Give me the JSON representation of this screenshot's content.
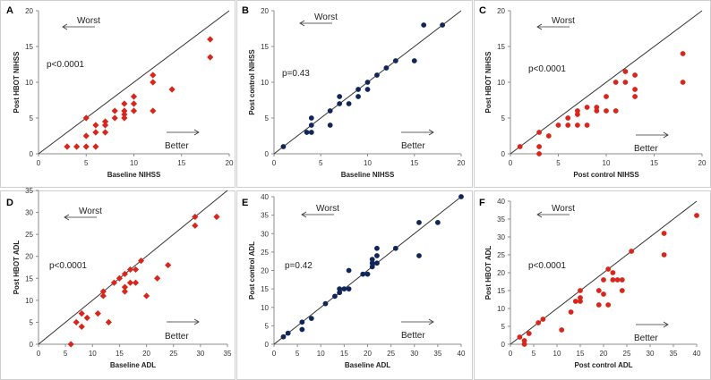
{
  "colors": {
    "red": "#d9261c",
    "navy": "#10265a"
  },
  "chart_data": [
    {
      "type": "scatter",
      "letter": "A",
      "title": "",
      "xlabel": "Baseline NIHSS",
      "ylabel": "Post HBOT NIHSS",
      "xlim": [
        0,
        20
      ],
      "ylim": [
        0,
        20
      ],
      "xticks": [
        0,
        5,
        10,
        15,
        20
      ],
      "yticks": [
        0,
        5,
        10,
        15,
        20
      ],
      "marker": "diamond",
      "color": "#d9261c",
      "pvalue": "p<0.0001",
      "worst_label": "Worst",
      "better_label": "Better",
      "points": [
        [
          3,
          1
        ],
        [
          4,
          1
        ],
        [
          5,
          1
        ],
        [
          6,
          1
        ],
        [
          5,
          2.5
        ],
        [
          5,
          5
        ],
        [
          6,
          3
        ],
        [
          6,
          4
        ],
        [
          7,
          3
        ],
        [
          7,
          4
        ],
        [
          7,
          4.5
        ],
        [
          8,
          5
        ],
        [
          8,
          6
        ],
        [
          9,
          5
        ],
        [
          9,
          5.5
        ],
        [
          9,
          6
        ],
        [
          9,
          7
        ],
        [
          10,
          6
        ],
        [
          10,
          7
        ],
        [
          10,
          8
        ],
        [
          12,
          6
        ],
        [
          12,
          10
        ],
        [
          12,
          11
        ],
        [
          14,
          9
        ],
        [
          18,
          13.5
        ],
        [
          18,
          16
        ]
      ]
    },
    {
      "type": "scatter",
      "letter": "B",
      "title": "",
      "xlabel": "Baseline NIHSS",
      "ylabel": "Post control NIHSS",
      "xlim": [
        0,
        20
      ],
      "ylim": [
        0,
        20
      ],
      "xticks": [
        0,
        5,
        10,
        15,
        20
      ],
      "yticks": [
        0,
        5,
        10,
        15,
        20
      ],
      "marker": "circle",
      "color": "#10265a",
      "pvalue": "p=0.43",
      "worst_label": "Worst",
      "better_label": "Better",
      "points": [
        [
          1,
          1
        ],
        [
          3.5,
          3
        ],
        [
          4,
          3
        ],
        [
          4,
          4
        ],
        [
          4,
          5
        ],
        [
          6,
          4
        ],
        [
          6,
          6
        ],
        [
          7,
          7
        ],
        [
          7,
          8
        ],
        [
          8,
          7
        ],
        [
          9,
          8
        ],
        [
          9,
          9
        ],
        [
          10,
          9
        ],
        [
          10,
          10
        ],
        [
          11,
          11
        ],
        [
          12,
          12
        ],
        [
          13,
          13
        ],
        [
          15,
          13
        ],
        [
          16,
          18
        ],
        [
          18,
          18
        ]
      ]
    },
    {
      "type": "scatter",
      "letter": "C",
      "title": "",
      "xlabel": "Post control NIHSS",
      "ylabel": "Post HBOT NIHSS",
      "xlim": [
        0,
        20
      ],
      "ylim": [
        0,
        20
      ],
      "xticks": [
        0,
        5,
        10,
        15,
        20
      ],
      "yticks": [
        0,
        5,
        10,
        15,
        20
      ],
      "marker": "circle",
      "color": "#d9261c",
      "pvalue": "p<0.0001",
      "worst_label": "Worst",
      "better_label": "Better",
      "points": [
        [
          1,
          1
        ],
        [
          3,
          0
        ],
        [
          3,
          1
        ],
        [
          3,
          3
        ],
        [
          4,
          2.5
        ],
        [
          5,
          4
        ],
        [
          6,
          4
        ],
        [
          6,
          5
        ],
        [
          7,
          4
        ],
        [
          7,
          5.5
        ],
        [
          7,
          6
        ],
        [
          8,
          4
        ],
        [
          8,
          6.5
        ],
        [
          9,
          6
        ],
        [
          9,
          6.5
        ],
        [
          10,
          6
        ],
        [
          10,
          8
        ],
        [
          11,
          6
        ],
        [
          11,
          10
        ],
        [
          12,
          10
        ],
        [
          12,
          11.5
        ],
        [
          13,
          8
        ],
        [
          13,
          9
        ],
        [
          13,
          11
        ],
        [
          18,
          10
        ],
        [
          18,
          14
        ]
      ]
    },
    {
      "type": "scatter",
      "letter": "D",
      "title": "",
      "xlabel": "Baseline ADL",
      "ylabel": "Post HBOT ADL",
      "xlim": [
        0,
        35
      ],
      "ylim": [
        0,
        35
      ],
      "xticks": [
        0,
        5,
        10,
        15,
        20,
        25,
        30,
        35
      ],
      "yticks": [
        0,
        5,
        10,
        15,
        20,
        25,
        30,
        35
      ],
      "marker": "diamond",
      "color": "#d9261c",
      "pvalue": "p<0.0001",
      "worst_label": "Worst",
      "better_label": "Better",
      "points": [
        [
          6,
          0
        ],
        [
          7,
          5
        ],
        [
          8,
          4
        ],
        [
          8,
          7
        ],
        [
          9,
          6
        ],
        [
          11,
          7
        ],
        [
          12,
          11
        ],
        [
          12,
          12
        ],
        [
          13,
          5
        ],
        [
          14,
          14
        ],
        [
          15,
          15
        ],
        [
          16,
          12
        ],
        [
          16,
          13
        ],
        [
          16,
          16
        ],
        [
          17,
          14
        ],
        [
          17,
          17
        ],
        [
          18,
          14
        ],
        [
          18,
          17
        ],
        [
          19,
          19
        ],
        [
          20,
          11
        ],
        [
          22,
          15
        ],
        [
          24,
          18
        ],
        [
          29,
          27
        ],
        [
          29,
          29
        ],
        [
          33,
          29
        ]
      ]
    },
    {
      "type": "scatter",
      "letter": "E",
      "title": "",
      "xlabel": "Baseline ADL",
      "ylabel": "Post control ADL",
      "xlim": [
        0,
        40
      ],
      "ylim": [
        0,
        40
      ],
      "xticks": [
        0,
        5,
        10,
        15,
        20,
        25,
        30,
        35,
        40
      ],
      "yticks": [
        0,
        5,
        10,
        15,
        20,
        25,
        30,
        35,
        40
      ],
      "marker": "circle",
      "color": "#10265a",
      "pvalue": "p=0.42",
      "worst_label": "Worst",
      "better_label": "Better",
      "points": [
        [
          2,
          2
        ],
        [
          3,
          3
        ],
        [
          6,
          4
        ],
        [
          6,
          6
        ],
        [
          8,
          7
        ],
        [
          11,
          11
        ],
        [
          13,
          13
        ],
        [
          14,
          14
        ],
        [
          14,
          15
        ],
        [
          15,
          15
        ],
        [
          16,
          15
        ],
        [
          16,
          20
        ],
        [
          19,
          19
        ],
        [
          20,
          19
        ],
        [
          21,
          21
        ],
        [
          21,
          22
        ],
        [
          21,
          23
        ],
        [
          22,
          22
        ],
        [
          22,
          24
        ],
        [
          22,
          26
        ],
        [
          26,
          26
        ],
        [
          31,
          24
        ],
        [
          31,
          33
        ],
        [
          35,
          33
        ],
        [
          40,
          40
        ]
      ]
    },
    {
      "type": "scatter",
      "letter": "F",
      "title": "",
      "xlabel": "Post control ADL",
      "ylabel": "Post HBOT ADL",
      "xlim": [
        0,
        40
      ],
      "ylim": [
        0,
        40
      ],
      "xticks": [
        0,
        5,
        10,
        15,
        20,
        25,
        30,
        35,
        40
      ],
      "yticks": [
        0,
        5,
        10,
        15,
        20,
        25,
        30,
        35,
        40
      ],
      "marker": "circle",
      "color": "#d9261c",
      "pvalue": "p<0.0001",
      "worst_label": "Worst",
      "better_label": "Better",
      "points": [
        [
          2,
          2
        ],
        [
          3,
          0
        ],
        [
          3,
          1
        ],
        [
          4,
          3
        ],
        [
          6,
          6
        ],
        [
          7,
          7
        ],
        [
          11,
          4
        ],
        [
          13,
          9
        ],
        [
          14,
          12
        ],
        [
          15,
          12
        ],
        [
          15,
          13
        ],
        [
          15,
          15
        ],
        [
          19,
          11
        ],
        [
          19,
          15
        ],
        [
          20,
          14
        ],
        [
          20,
          18
        ],
        [
          21,
          11
        ],
        [
          21,
          21
        ],
        [
          22,
          18
        ],
        [
          22,
          20
        ],
        [
          23,
          18
        ],
        [
          24,
          15
        ],
        [
          24,
          18
        ],
        [
          26,
          26
        ],
        [
          33,
          25
        ],
        [
          33,
          31
        ],
        [
          40,
          36
        ]
      ]
    }
  ]
}
